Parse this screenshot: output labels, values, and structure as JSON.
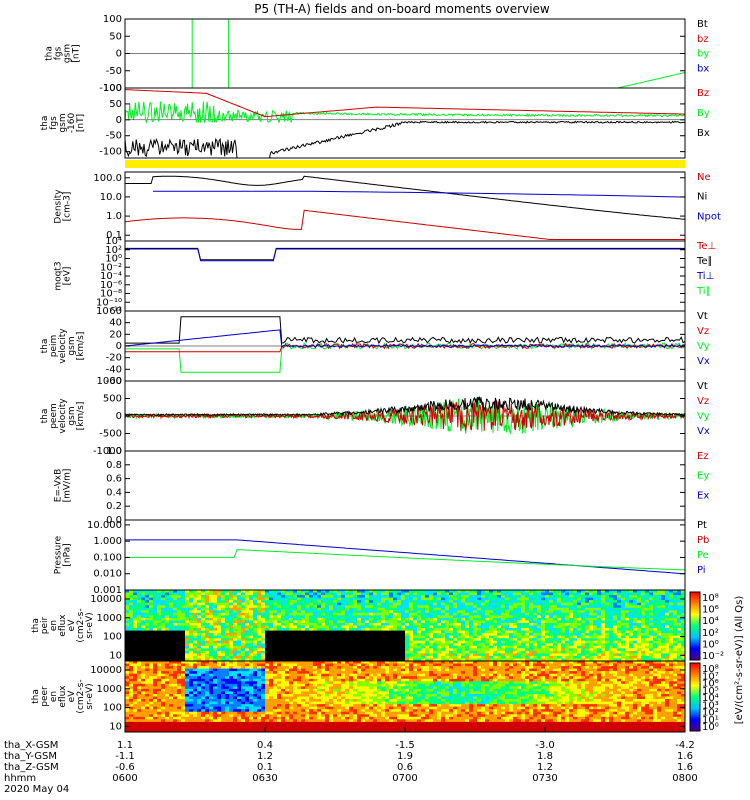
{
  "title": "P5 (TH-A) fields and on-board moments overview",
  "colors": {
    "black": "#000000",
    "red": "#cc0000",
    "green": "#00ee22",
    "blue": "#0000cc",
    "yellow": "#ffee00"
  },
  "chart_data": [
    {
      "type": "line",
      "ylabel": [
        "tha",
        "fgs",
        "gsm",
        "[nT]"
      ],
      "ylim": [
        -100,
        100
      ],
      "yticks": [
        "100",
        "50",
        "0",
        "-50",
        "-100"
      ],
      "ytickvals": [
        100,
        50,
        0,
        -50,
        -100
      ],
      "legend": [
        {
          "name": "Bt",
          "color": "black"
        },
        {
          "name": "bz",
          "color": "red"
        },
        {
          "name": "by",
          "color": "green"
        },
        {
          "name": "bx",
          "color": "blue"
        }
      ]
    },
    {
      "type": "line",
      "ylabel": [
        "tha",
        "fgs",
        "gsm",
        "-160",
        "[nT]"
      ],
      "ylim": [
        -120,
        100
      ],
      "yticks": [
        "100",
        "50",
        "0",
        "-50",
        "-100"
      ],
      "ytickvals": [
        100,
        50,
        0,
        -50,
        -100
      ],
      "legend": [
        {
          "name": "Bz",
          "color": "red"
        },
        {
          "name": "By",
          "color": "green"
        },
        {
          "name": "Bx",
          "color": "black"
        }
      ]
    },
    {
      "type": "line",
      "ylabel": [
        "Density",
        "[cm-3]"
      ],
      "yscale": "log",
      "ylim": [
        0.05,
        200
      ],
      "yticks": [
        "100.0",
        "10.0",
        "1.0",
        "0.1"
      ],
      "ytickvals": [
        100,
        10,
        1,
        0.1
      ],
      "legend": [
        {
          "name": "Ne",
          "color": "red"
        },
        {
          "name": "Ni",
          "color": "black"
        },
        {
          "name": "Npot",
          "color": "blue"
        }
      ]
    },
    {
      "type": "line",
      "ylabel": [
        "moqt3",
        "[eV]"
      ],
      "yscale": "log",
      "ylim": [
        1e-12,
        10000.0
      ],
      "yticks": [
        "10⁴",
        "10²",
        "10⁰",
        "10⁻²",
        "10⁻⁴",
        "10⁻⁶",
        "10⁻⁸",
        "10⁻¹⁰",
        "10⁻¹²"
      ],
      "ytickvals": [
        10000.0,
        100.0,
        1,
        0.01,
        0.0001,
        1e-06,
        1e-08,
        1e-10,
        1e-12
      ],
      "legend": [
        {
          "name": "Te⊥",
          "color": "red"
        },
        {
          "name": "Te∥",
          "color": "black"
        },
        {
          "name": "Ti⊥",
          "color": "blue"
        },
        {
          "name": "Ti∥",
          "color": "green"
        }
      ]
    },
    {
      "type": "line",
      "ylabel": [
        "tha",
        "peim",
        "velocity",
        "gsm",
        "[km/s]"
      ],
      "ylim": [
        -60,
        60
      ],
      "yticks": [
        "60",
        "40",
        "20",
        "0",
        "-20",
        "-40",
        "-60"
      ],
      "ytickvals": [
        60,
        40,
        20,
        0,
        -20,
        -40,
        -60
      ],
      "legend": [
        {
          "name": "Vt",
          "color": "black"
        },
        {
          "name": "Vz",
          "color": "red"
        },
        {
          "name": "Vy",
          "color": "green"
        },
        {
          "name": "Vx",
          "color": "blue"
        }
      ]
    },
    {
      "type": "line",
      "ylabel": [
        "tha",
        "peem",
        "velocity",
        "gsm",
        "[km/s]"
      ],
      "ylim": [
        -1000,
        1000
      ],
      "yticks": [
        "1000",
        "500",
        "0",
        "-500",
        "-1000"
      ],
      "ytickvals": [
        1000,
        500,
        0,
        -500,
        -1000
      ],
      "legend": [
        {
          "name": "Vt",
          "color": "black"
        },
        {
          "name": "Vz",
          "color": "red"
        },
        {
          "name": "Vy",
          "color": "green"
        },
        {
          "name": "Vx",
          "color": "blue"
        }
      ]
    },
    {
      "type": "line",
      "ylabel": [
        "E=-VxB",
        "[mV/m]"
      ],
      "ylim": [
        0,
        1
      ],
      "yticks": [
        "1.0",
        "0.8",
        "0.6",
        "0.4",
        "0.2",
        "0.0"
      ],
      "ytickvals": [
        1,
        0.8,
        0.6,
        0.4,
        0.2,
        0
      ],
      "legend": [
        {
          "name": "Ez",
          "color": "red"
        },
        {
          "name": "Ey",
          "color": "green"
        },
        {
          "name": "Ex",
          "color": "blue"
        }
      ]
    },
    {
      "type": "line",
      "ylabel": [
        "Pressure",
        "[nPa]"
      ],
      "yscale": "log",
      "ylim": [
        0.001,
        20
      ],
      "yticks": [
        "10.000",
        "1.000",
        "0.100",
        "0.010",
        "0.001"
      ],
      "ytickvals": [
        10,
        1,
        0.1,
        0.01,
        0.001
      ],
      "legend": [
        {
          "name": "Pt",
          "color": "black"
        },
        {
          "name": "Pb",
          "color": "red"
        },
        {
          "name": "Pe",
          "color": "green"
        },
        {
          "name": "Pi",
          "color": "blue"
        }
      ]
    },
    {
      "type": "heatmap",
      "ylabel": [
        "tha",
        "peir",
        "en",
        "eflux",
        "eV",
        "(cm2-s-",
        "sr-eV)"
      ],
      "yscale": "log",
      "ylim": [
        5,
        30000
      ],
      "yticks": [
        "10000",
        "1000",
        "100",
        "10"
      ],
      "ytickvals": [
        10000,
        1000,
        100,
        10
      ]
    },
    {
      "type": "heatmap",
      "ylabel": [
        "tha",
        "peer",
        "en",
        "eflux",
        "eV",
        "(cm2-s-",
        "sr-eV)"
      ],
      "yscale": "log",
      "ylim": [
        5,
        30000
      ],
      "yticks": [
        "10000",
        "1000",
        "100",
        "10"
      ],
      "ytickvals": [
        10000,
        1000,
        100,
        10
      ]
    }
  ],
  "colorbar": {
    "label": "[eV/(cm²-s-sr-eV)] (All Qs)",
    "upper_ticks": [
      "10⁸",
      "10⁶",
      "10⁴",
      "10²",
      "10⁰",
      "10⁻²"
    ],
    "lower_ticks": [
      "10⁸",
      "10⁷",
      "10⁶",
      "10⁵",
      "10⁴",
      "10³",
      "10²",
      "10¹",
      "10⁰"
    ]
  },
  "x_axis": {
    "ephemeris_labels": [
      "tha_X-GSM",
      "tha_Y-GSM",
      "tha_Z-GSM",
      "hhmm",
      "2020 May 04"
    ],
    "ticks": [
      {
        "x": "1.1",
        "y": "-1.1",
        "z": "-0.6",
        "time": "0600"
      },
      {
        "x": "0.4",
        "y": "1.2",
        "z": "0.1",
        "time": "0630"
      },
      {
        "x": "-1.5",
        "y": "1.9",
        "z": "0.6",
        "time": "0700"
      },
      {
        "x": "-3.0",
        "y": "1.8",
        "z": "1.2",
        "time": "0730"
      },
      {
        "x": "-4.2",
        "y": "1.6",
        "z": "1.6",
        "time": "0800"
      }
    ]
  }
}
